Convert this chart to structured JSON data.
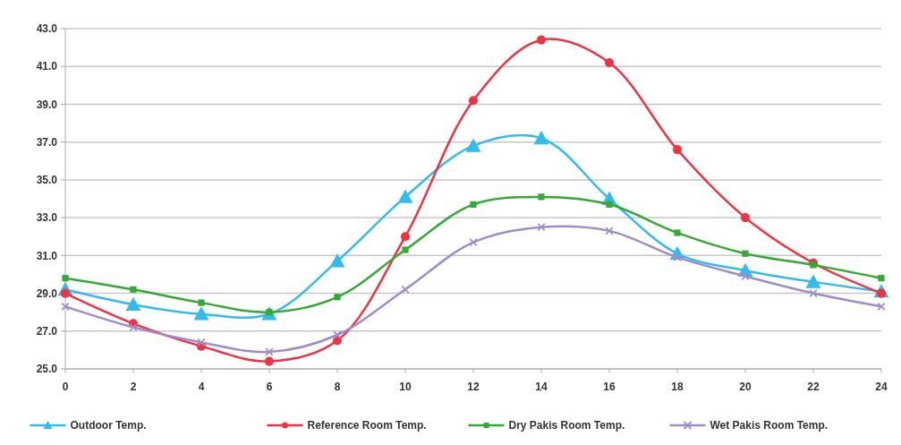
{
  "chart_data": {
    "type": "line",
    "x": [
      0,
      2,
      4,
      6,
      8,
      10,
      12,
      14,
      16,
      18,
      20,
      22,
      24
    ],
    "series": [
      {
        "name": "Outdoor Temp.",
        "color": "#33bbee",
        "marker": "triangle",
        "values": [
          29.2,
          28.4,
          27.9,
          27.9,
          30.7,
          34.1,
          36.8,
          37.2,
          34.0,
          31.1,
          30.2,
          29.6,
          29.1
        ]
      },
      {
        "name": "Reference Room Temp.",
        "color": "#ee3344",
        "marker": "circle",
        "values": [
          29.0,
          27.4,
          26.2,
          25.4,
          26.5,
          32.0,
          39.2,
          42.4,
          41.2,
          36.6,
          33.0,
          30.6,
          29.0
        ]
      },
      {
        "name": "Dry Pakis Room Temp.",
        "color": "#33aa33",
        "marker": "square",
        "values": [
          29.8,
          29.2,
          28.5,
          28.0,
          28.8,
          31.3,
          33.7,
          34.1,
          33.7,
          32.2,
          31.1,
          30.5,
          29.8
        ]
      },
      {
        "name": "Wet Pakis Room Temp.",
        "color": "#a08cc8",
        "marker": "cross",
        "values": [
          28.3,
          27.2,
          26.4,
          25.9,
          26.8,
          29.2,
          31.7,
          32.5,
          32.3,
          30.9,
          29.9,
          29.0,
          28.3
        ]
      }
    ],
    "xlim": [
      0,
      24
    ],
    "xticks": [
      0,
      2,
      4,
      6,
      8,
      10,
      12,
      14,
      16,
      18,
      20,
      22,
      24
    ],
    "ylim": [
      25,
      43
    ],
    "yticks": [
      {
        "value": 25,
        "label": "25.0"
      },
      {
        "value": 27,
        "label": "27.0"
      },
      {
        "value": 29,
        "label": "29.0"
      },
      {
        "value": 31,
        "label": "31.0"
      },
      {
        "value": 33,
        "label": "33.0"
      },
      {
        "value": 35,
        "label": "35.0"
      },
      {
        "value": 37,
        "label": "37.0"
      },
      {
        "value": 39,
        "label": "39.0"
      },
      {
        "value": 41,
        "label": "41.0"
      },
      {
        "value": 43,
        "label": "43.0"
      }
    ],
    "grid": "y",
    "legend": "bottom"
  }
}
